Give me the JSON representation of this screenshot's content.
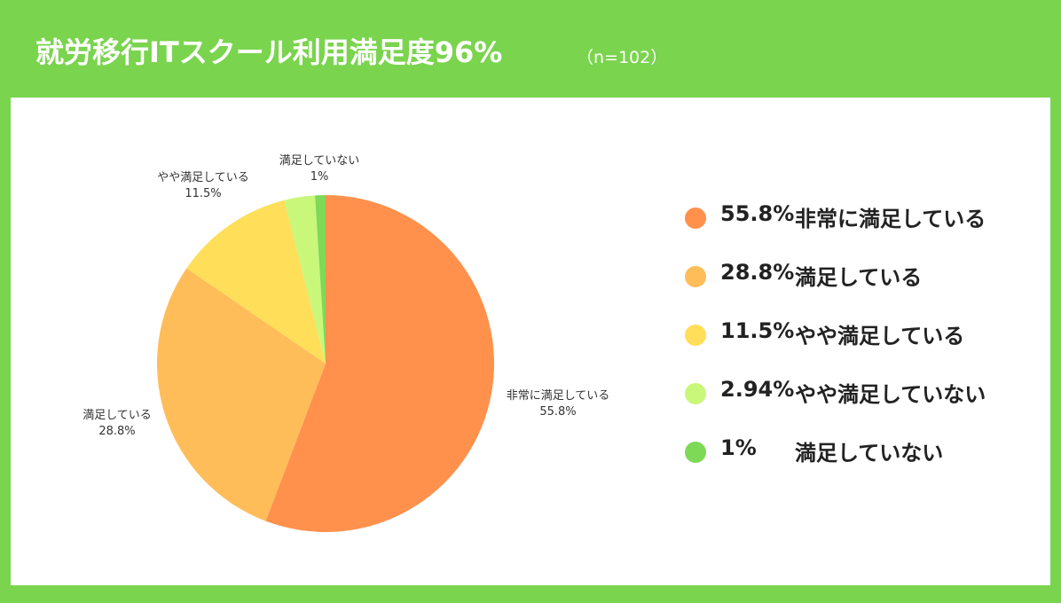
{
  "header": {
    "title": "就労移行ITスクール利用満足度96%",
    "sample_note": "（n=102）"
  },
  "colors": {
    "background": "#7ad44e",
    "panel": "#ffffff"
  },
  "chart_data": {
    "type": "pie",
    "categories": [
      "非常に満足している",
      "満足している",
      "やや満足している",
      "やや満足していない",
      "満足していない"
    ],
    "values": [
      55.8,
      28.8,
      11.5,
      2.94,
      1
    ],
    "value_labels": [
      "55.8%",
      "28.8%",
      "11.5%",
      "",
      "1%"
    ],
    "colors": [
      "#ff914d",
      "#ffbd59",
      "#ffde59",
      "#c9f77a",
      "#7ed957"
    ],
    "legend_position": "right"
  },
  "legend": {
    "items": [
      {
        "pct": "55.8%",
        "label": "非常に満足している",
        "color": "#ff914d"
      },
      {
        "pct": "28.8%",
        "label": "満足している",
        "color": "#ffbd59"
      },
      {
        "pct": "11.5%",
        "label": "やや満足している",
        "color": "#ffde59"
      },
      {
        "pct": "2.94%",
        "label": "やや満足していない",
        "color": "#c9f77a"
      },
      {
        "pct": "1%",
        "label": "満足していない",
        "color": "#7ed957"
      }
    ]
  }
}
